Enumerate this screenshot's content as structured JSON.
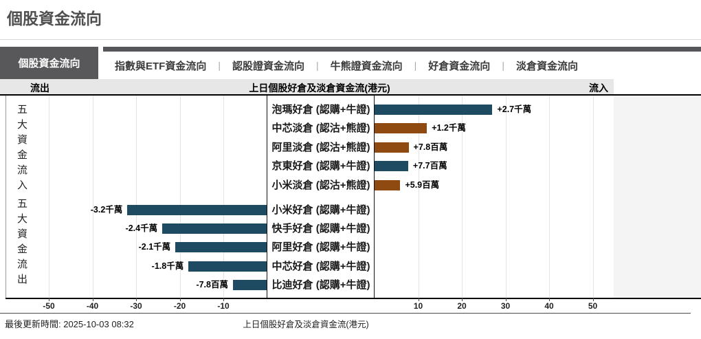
{
  "page_title": "個股資金流向",
  "tabs": {
    "active": {
      "label": "個股資金流向"
    },
    "others": [
      {
        "label": "指數與ETF資金流向"
      },
      {
        "label": "認股證資金流向"
      },
      {
        "label": "牛熊證資金流向"
      },
      {
        "label": "好倉資金流向"
      },
      {
        "label": "淡倉資金流向"
      }
    ],
    "separator": "|"
  },
  "chart_header": {
    "left": "流出",
    "center": "上日個股好倉及淡倉資金流(港元)",
    "right": "流入"
  },
  "side_labels": {
    "inflow_group": "五大資金流入",
    "outflow_group": "五大資金流出"
  },
  "chart_data": {
    "type": "bar",
    "orientation": "horizontal",
    "title": "上日個股好倉及淡倉資金流(港元)",
    "value_unit": "百萬港元",
    "x_axis": {
      "ticks": [
        -50,
        -40,
        -30,
        -20,
        -10,
        10,
        20,
        30,
        40,
        50
      ],
      "xlim": [
        -60,
        55
      ],
      "grid": true
    },
    "series": [
      {
        "name": "五大資金流入",
        "direction": "inflow",
        "rows": [
          {
            "label": "泡瑪好倉 (認購+牛證)",
            "value_label": "+2.7千萬",
            "value_millions": 27,
            "color_key": "long"
          },
          {
            "label": "中芯淡倉 (認沽+熊證)",
            "value_label": "+1.2千萬",
            "value_millions": 12,
            "color_key": "short"
          },
          {
            "label": "阿里淡倉 (認沽+熊證)",
            "value_label": "+7.8百萬",
            "value_millions": 7.8,
            "color_key": "short"
          },
          {
            "label": "京東好倉 (認購+牛證)",
            "value_label": "+7.7百萬",
            "value_millions": 7.7,
            "color_key": "long"
          },
          {
            "label": "小米淡倉 (認沽+熊證)",
            "value_label": "+5.9百萬",
            "value_millions": 5.9,
            "color_key": "short"
          }
        ]
      },
      {
        "name": "五大資金流出",
        "direction": "outflow",
        "rows": [
          {
            "label": "小米好倉 (認購+牛證)",
            "value_label": "-3.2千萬",
            "value_millions": -32,
            "color_key": "long"
          },
          {
            "label": "快手好倉 (認購+牛證)",
            "value_label": "-2.4千萬",
            "value_millions": -24,
            "color_key": "long"
          },
          {
            "label": "阿里好倉 (認購+牛證)",
            "value_label": "-2.1千萬",
            "value_millions": -21,
            "color_key": "long"
          },
          {
            "label": "中芯好倉 (認購+牛證)",
            "value_label": "-1.8千萬",
            "value_millions": -18,
            "color_key": "long"
          },
          {
            "label": "比迪好倉 (認購+牛證)",
            "value_label": "-7.8百萬",
            "value_millions": -7.8,
            "color_key": "long"
          }
        ]
      }
    ],
    "legend_position": "none"
  },
  "colors": {
    "bar_long_blue": "#1e4b62",
    "bar_short_brown": "#8f4a12",
    "tab_active_bg": "#58585b",
    "tab_strip": "#55565a",
    "header_row_bg": "#e7e7e7",
    "right_panel_bg": "#f4f4f4"
  },
  "footer": {
    "updated": "最後更新時間: 2025-10-03 08:32",
    "center": "上日個股好倉及淡倉資金流(港元)"
  }
}
